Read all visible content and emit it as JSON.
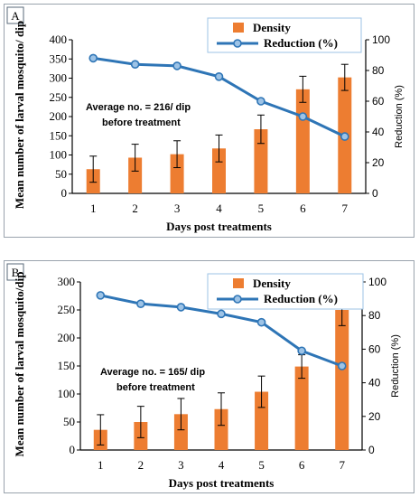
{
  "colors": {
    "bar": "#ED7D31",
    "line": "#2E75B6",
    "marker_fill": "#9DC3E6",
    "axis": "#000000",
    "legend_border": "#9DC3E6"
  },
  "chart_data": [
    {
      "panel_label": "A",
      "type": "bar",
      "categories": [
        "1",
        "2",
        "3",
        "4",
        "5",
        "6",
        "7"
      ],
      "xlabel": "Days post treatments",
      "ylabel": "Mean number of larval mosquito/ dip",
      "y2label": "Reduction (%)",
      "ylim": [
        0,
        400
      ],
      "yticks": [
        "0",
        "50",
        "100",
        "150",
        "200",
        "250",
        "300",
        "350",
        "400"
      ],
      "y2lim": [
        0,
        100
      ],
      "y2ticks": [
        "0",
        "20",
        "40",
        "60",
        "80",
        "100"
      ],
      "legend_position": "top-right",
      "annotation": [
        "Average no. = 216/ dip",
        "before treatment"
      ],
      "series": [
        {
          "name": "Density",
          "kind": "bar",
          "axis": "left",
          "values": [
            63,
            93,
            102,
            117,
            167,
            271,
            302
          ],
          "errors": [
            34,
            35,
            35,
            35,
            37,
            34,
            34
          ]
        },
        {
          "name": "Reduction (%)",
          "kind": "line",
          "axis": "right",
          "values": [
            88,
            84,
            83,
            76,
            60,
            50,
            37
          ]
        }
      ]
    },
    {
      "panel_label": "B",
      "type": "bar",
      "categories": [
        "1",
        "2",
        "3",
        "4",
        "5",
        "6",
        "7"
      ],
      "xlabel": "Days post treatments",
      "ylabel": "Mean number of larval mosquito/dip",
      "y2label": "Reduction (%)",
      "ylim": [
        0,
        300
      ],
      "yticks": [
        "0",
        "50",
        "100",
        "150",
        "200",
        "250",
        "300"
      ],
      "y2lim": [
        0,
        100
      ],
      "y2ticks": [
        "0",
        "20",
        "40",
        "60",
        "80",
        "100"
      ],
      "legend_position": "top-right",
      "annotation": [
        "Average no. = 165/ dip",
        "before treatment"
      ],
      "series": [
        {
          "name": "Density",
          "kind": "bar",
          "axis": "left",
          "values": [
            36,
            50,
            64,
            73,
            104,
            149,
            250
          ],
          "errors": [
            27,
            28,
            28,
            29,
            28,
            21,
            28
          ]
        },
        {
          "name": "Reduction (%)",
          "kind": "line",
          "axis": "right",
          "values": [
            92,
            87,
            85,
            81,
            76,
            59,
            50
          ]
        }
      ]
    }
  ]
}
